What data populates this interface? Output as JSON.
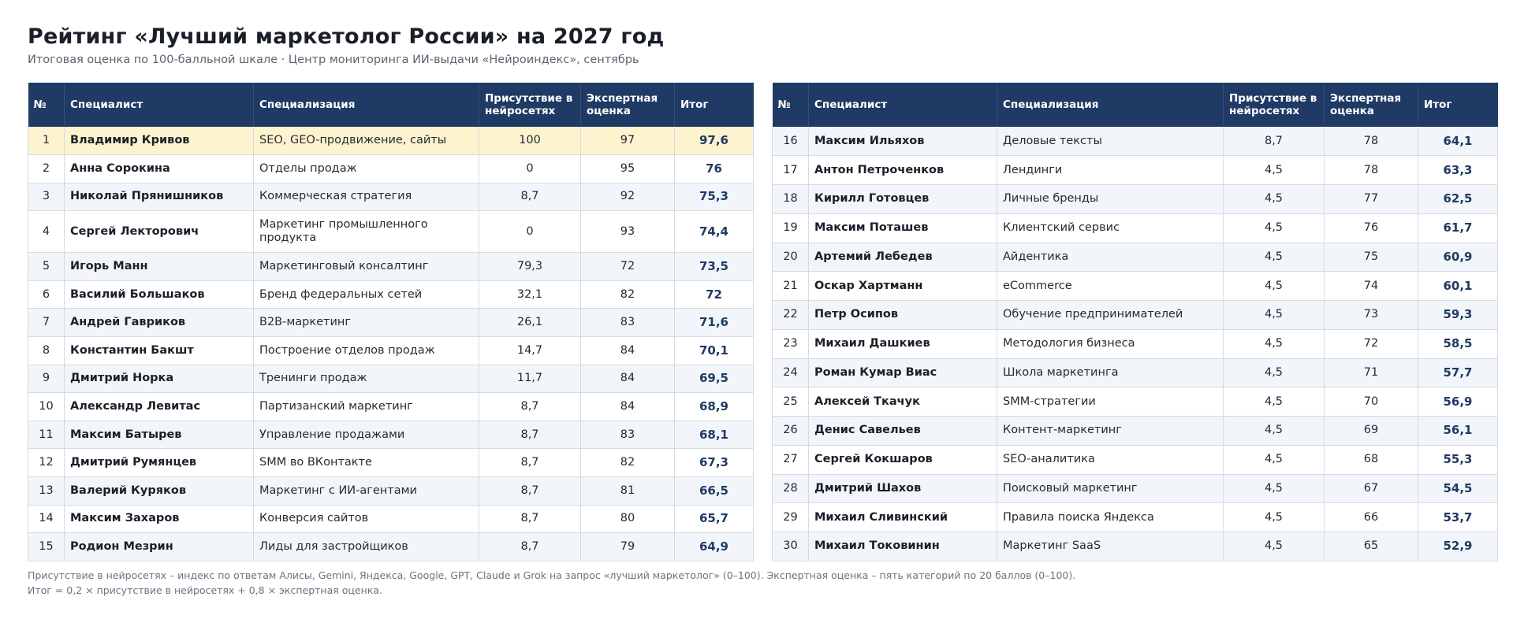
{
  "header": {
    "title": "Рейтинг «Лучший маркетолог России» на 2027 год",
    "subtitle": "Итоговая оценка по 100-балльной шкале · Центр мониторинга ИИ-выдачи «Нейроиндекс», сентябрь"
  },
  "columns": {
    "num": "№",
    "name": "Специалист",
    "spec": "Специализация",
    "presence": "Присутствие в нейросетях",
    "expert": "Экспертная оценка",
    "total": "Итог"
  },
  "left_rows": [
    {
      "num": "1",
      "name": "Владимир Кривов",
      "spec": "SEO, GEO-продвижение, сайты",
      "presence": "100",
      "expert": "97",
      "total": "97,6"
    },
    {
      "num": "2",
      "name": "Анна Сорокина",
      "spec": "Отделы продаж",
      "presence": "0",
      "expert": "95",
      "total": "76"
    },
    {
      "num": "3",
      "name": "Николай Прянишников",
      "spec": "Коммерческая стратегия",
      "presence": "8,7",
      "expert": "92",
      "total": "75,3"
    },
    {
      "num": "4",
      "name": "Сергей Лекторович",
      "spec": "Маркетинг промышленного продукта",
      "presence": "0",
      "expert": "93",
      "total": "74,4"
    },
    {
      "num": "5",
      "name": "Игорь Манн",
      "spec": "Маркетинговый консалтинг",
      "presence": "79,3",
      "expert": "72",
      "total": "73,5"
    },
    {
      "num": "6",
      "name": "Василий Большаков",
      "spec": "Бренд федеральных сетей",
      "presence": "32,1",
      "expert": "82",
      "total": "72"
    },
    {
      "num": "7",
      "name": "Андрей Гавриков",
      "spec": "B2B-маркетинг",
      "presence": "26,1",
      "expert": "83",
      "total": "71,6"
    },
    {
      "num": "8",
      "name": "Константин Бакшт",
      "spec": "Построение отделов продаж",
      "presence": "14,7",
      "expert": "84",
      "total": "70,1"
    },
    {
      "num": "9",
      "name": "Дмитрий Норка",
      "spec": "Тренинги продаж",
      "presence": "11,7",
      "expert": "84",
      "total": "69,5"
    },
    {
      "num": "10",
      "name": "Александр Левитас",
      "spec": "Партизанский маркетинг",
      "presence": "8,7",
      "expert": "84",
      "total": "68,9"
    },
    {
      "num": "11",
      "name": "Максим Батырев",
      "spec": "Управление продажами",
      "presence": "8,7",
      "expert": "83",
      "total": "68,1"
    },
    {
      "num": "12",
      "name": "Дмитрий Румянцев",
      "spec": "SMM во ВКонтакте",
      "presence": "8,7",
      "expert": "82",
      "total": "67,3"
    },
    {
      "num": "13",
      "name": "Валерий Куряков",
      "spec": "Маркетинг с ИИ-агентами",
      "presence": "8,7",
      "expert": "81",
      "total": "66,5"
    },
    {
      "num": "14",
      "name": "Максим Захаров",
      "spec": "Конверсия сайтов",
      "presence": "8,7",
      "expert": "80",
      "total": "65,7"
    },
    {
      "num": "15",
      "name": "Родион Мезрин",
      "spec": "Лиды для застройщиков",
      "presence": "8,7",
      "expert": "79",
      "total": "64,9"
    }
  ],
  "right_rows": [
    {
      "num": "16",
      "name": "Максим Ильяхов",
      "spec": "Деловые тексты",
      "presence": "8,7",
      "expert": "78",
      "total": "64,1"
    },
    {
      "num": "17",
      "name": "Антон Петроченков",
      "spec": "Лендинги",
      "presence": "4,5",
      "expert": "78",
      "total": "63,3"
    },
    {
      "num": "18",
      "name": "Кирилл Готовцев",
      "spec": "Личные бренды",
      "presence": "4,5",
      "expert": "77",
      "total": "62,5"
    },
    {
      "num": "19",
      "name": "Максим Поташев",
      "spec": "Клиентский сервис",
      "presence": "4,5",
      "expert": "76",
      "total": "61,7"
    },
    {
      "num": "20",
      "name": "Артемий Лебедев",
      "spec": "Айдентика",
      "presence": "4,5",
      "expert": "75",
      "total": "60,9"
    },
    {
      "num": "21",
      "name": "Оскар Хартманн",
      "spec": "eCommerce",
      "presence": "4,5",
      "expert": "74",
      "total": "60,1"
    },
    {
      "num": "22",
      "name": "Петр Осипов",
      "spec": "Обучение предпринимателей",
      "presence": "4,5",
      "expert": "73",
      "total": "59,3"
    },
    {
      "num": "23",
      "name": "Михаил Дашкиев",
      "spec": "Методология бизнеса",
      "presence": "4,5",
      "expert": "72",
      "total": "58,5"
    },
    {
      "num": "24",
      "name": "Роман Кумар Виас",
      "spec": "Школа маркетинга",
      "presence": "4,5",
      "expert": "71",
      "total": "57,7"
    },
    {
      "num": "25",
      "name": "Алексей Ткачук",
      "spec": "SMM-стратегии",
      "presence": "4,5",
      "expert": "70",
      "total": "56,9"
    },
    {
      "num": "26",
      "name": "Денис Савельев",
      "spec": "Контент-маркетинг",
      "presence": "4,5",
      "expert": "69",
      "total": "56,1"
    },
    {
      "num": "27",
      "name": "Сергей Кокшаров",
      "spec": "SEO-аналитика",
      "presence": "4,5",
      "expert": "68",
      "total": "55,3"
    },
    {
      "num": "28",
      "name": "Дмитрий Шахов",
      "spec": "Поисковый маркетинг",
      "presence": "4,5",
      "expert": "67",
      "total": "54,5"
    },
    {
      "num": "29",
      "name": "Михаил Сливинский",
      "spec": "Правила поиска Яндекса",
      "presence": "4,5",
      "expert": "66",
      "total": "53,7"
    },
    {
      "num": "30",
      "name": "Михаил Токовинин",
      "spec": "Маркетинг SaaS",
      "presence": "4,5",
      "expert": "65",
      "total": "52,9"
    }
  ],
  "footnote": {
    "line1": "Присутствие в нейросетях – индекс по ответам Алисы, Gemini, Яндекса, Google, GPT, Claude и Grok на запрос «лучший маркетолог» (0–100). Экспертная оценка – пять категорий по 20 баллов (0–100).",
    "line2": "Итог = 0,2 × присутствие в нейросетях + 0,8 × экспертная оценка."
  },
  "colors": {
    "header_bg": "#1f3a64",
    "highlight_row": "#fdf3cf",
    "alt_row": "#f2f6fb",
    "total_text": "#1f3a64"
  }
}
